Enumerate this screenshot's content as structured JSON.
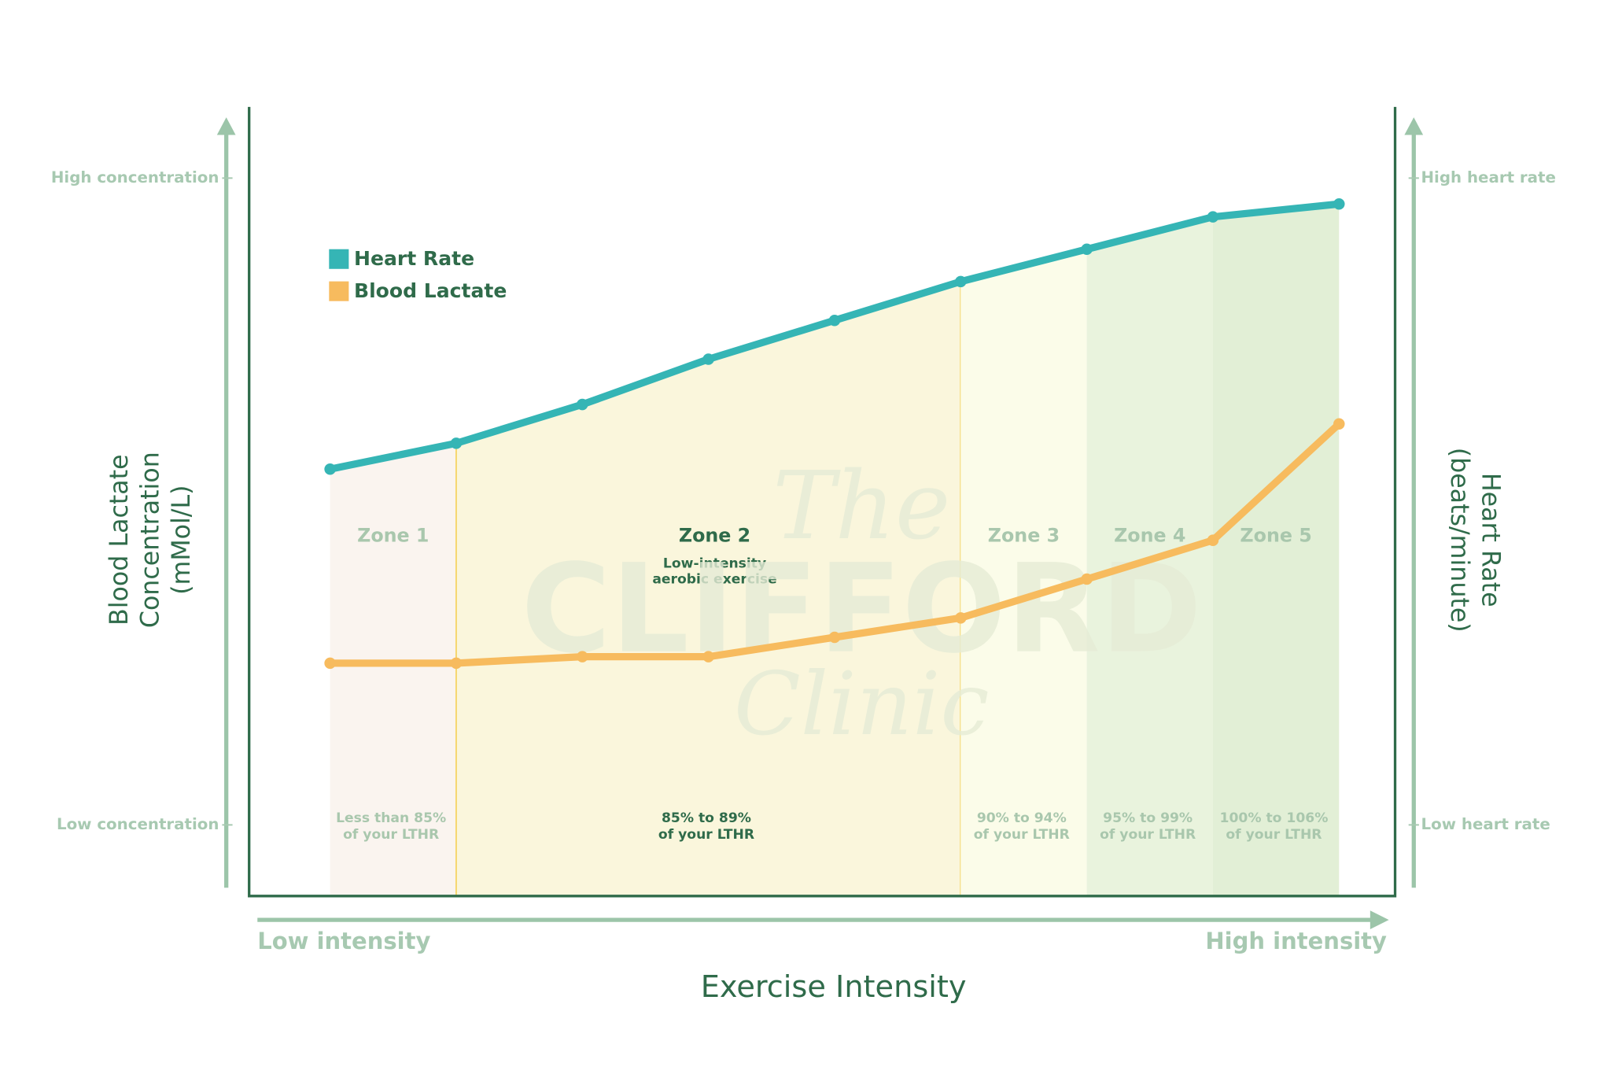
{
  "chart_data": {
    "type": "line",
    "title": "Exercise Intensity",
    "x_start_label": "Low intensity",
    "x_end_label": "High intensity",
    "y_label": [
      "Blood Lactate",
      "Concentration",
      "(mMol/L)"
    ],
    "y2_label": [
      "Heart Rate",
      "(beats/minute)"
    ],
    "categories": [
      null,
      null,
      null,
      null,
      null,
      null,
      null,
      null,
      null
    ],
    "ylim": [
      -11,
      111
    ],
    "yticks": [
      {
        "value": 0,
        "label": "Low concentration"
      },
      {
        "value": 100,
        "label": "High concentration"
      }
    ],
    "y2lim": [
      -11,
      111
    ],
    "y2ticks": [
      {
        "value": 0,
        "label": "Low heart rate"
      },
      {
        "value": 100,
        "label": "High heart rate"
      }
    ],
    "series": [
      {
        "name": "Heart Rate",
        "color": "#35b5b5",
        "axis": "y2",
        "values": [
          55,
          59,
          65,
          72,
          78,
          84,
          89,
          94,
          96
        ]
      },
      {
        "name": "Blood Lactate",
        "color": "#f7bb5e",
        "values": [
          25,
          25,
          26,
          26,
          29,
          32,
          38,
          44,
          62
        ]
      }
    ],
    "zones": [
      {
        "name": "Zone 1",
        "range": [
          "Less than 85%",
          "of your LTHR"
        ],
        "from": 0,
        "to": 1,
        "color": "#faf4ef"
      },
      {
        "name": "Zone 2",
        "description": [
          "Low-intensity",
          "aerobic exercise"
        ],
        "range": [
          "85% to 89%",
          "of your LTHR"
        ],
        "from": 1,
        "to": 5,
        "color": "#faf6dc",
        "highlight": true
      },
      {
        "name": "Zone 3",
        "range": [
          "90% to 94%",
          "of your LTHR"
        ],
        "from": 5,
        "to": 6,
        "color": "#fbfce9"
      },
      {
        "name": "Zone 4",
        "range": [
          "95% to 99%",
          "of your LTHR"
        ],
        "from": 6,
        "to": 7,
        "color": "#e9f3dd"
      },
      {
        "name": "Zone 5",
        "range": [
          "100% to 106%",
          "of your LTHR"
        ],
        "from": 7,
        "to": 8,
        "color": "#e2efd6"
      }
    ],
    "watermark": [
      "The",
      "CLIFFORD",
      "Clinic"
    ]
  }
}
